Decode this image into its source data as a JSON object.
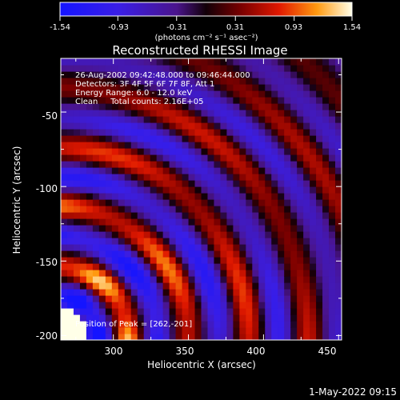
{
  "colorbar": {
    "tick_labels": [
      "-1.54",
      "-0.93",
      "-0.31",
      "0.31",
      "0.93",
      "1.54"
    ],
    "units_label": "(photons cm⁻² s⁻¹ asec⁻²)",
    "range": [
      -1.54,
      1.54
    ]
  },
  "chart_data": {
    "type": "heatmap",
    "title": "Reconstructed RHESSI Image",
    "xlabel": "Heliocentric X (arcsec)",
    "ylabel": "Heliocentric Y (arcsec)",
    "xlim": [
      265,
      452
    ],
    "ylim": [
      -203,
      -14
    ],
    "x_ticks": [
      300,
      350,
      400,
      450
    ],
    "y_ticks": [
      -200,
      -150,
      -100,
      -50
    ],
    "info_lines": [
      "26-Aug-2002 09:42:48.000 to 09:46:44.000",
      "Detectors: 3F 4F 5F 6F 7F 8F, Att 1",
      "Energy Range: 6.0 - 12.0 keV",
      "Clean     Total counts: 2.16E+05"
    ],
    "peak_label": "Position of Peak = [262,-201]",
    "peak_position": [
      262,
      -201
    ],
    "pattern": {
      "type": "concentric_rings",
      "center": [
        262,
        -201
      ],
      "ring_spacing_arcsec": 40,
      "value_range": [
        -1.54,
        1.54
      ]
    }
  },
  "timestamp": "1-May-2022 09:15"
}
